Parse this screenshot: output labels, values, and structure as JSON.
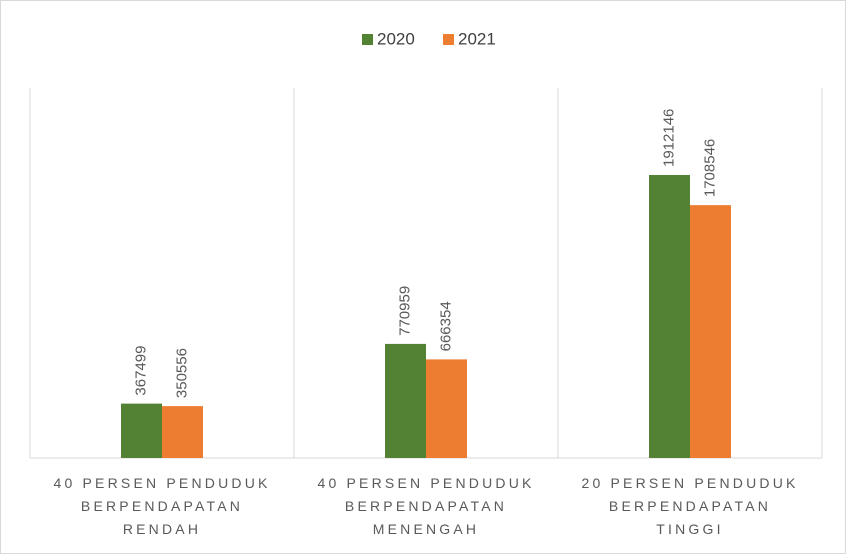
{
  "chart_data": {
    "type": "bar",
    "categories": [
      "40 PERSEN PENDUDUK BERPENDAPATAN RENDAH",
      "40 PERSEN PENDUDUK BERPENDAPATAN MENENGAH",
      "20 PERSEN PENDUDUK BERPENDAPATAN TINGGI"
    ],
    "series": [
      {
        "name": "2020",
        "color": "#548235",
        "values": [
          367499,
          770959,
          1912146
        ]
      },
      {
        "name": "2021",
        "color": "#ed7d31",
        "values": [
          350556,
          666354,
          1708546
        ]
      }
    ],
    "ylim": [
      0,
      2500000
    ],
    "legend": "top"
  }
}
